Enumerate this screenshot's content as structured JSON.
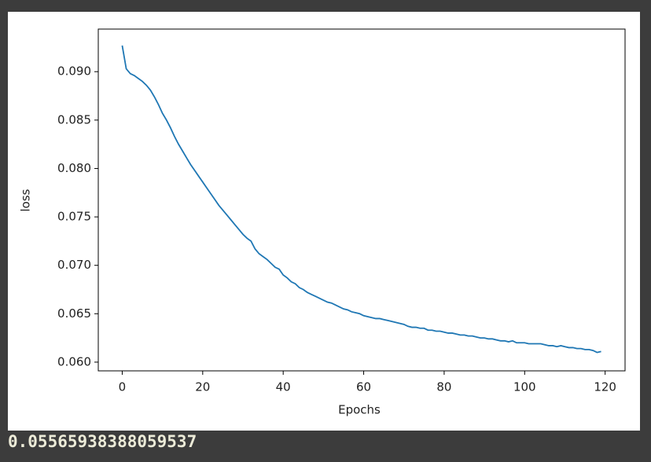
{
  "chart_data": {
    "type": "line",
    "xlabel": "Epochs",
    "ylabel": "loss",
    "color": "#1f77b4",
    "x": [
      0,
      1,
      2,
      3,
      4,
      5,
      6,
      7,
      8,
      9,
      10,
      11,
      12,
      13,
      14,
      15,
      16,
      17,
      18,
      19,
      20,
      21,
      22,
      23,
      24,
      25,
      26,
      27,
      28,
      29,
      30,
      31,
      32,
      33,
      34,
      35,
      36,
      37,
      38,
      39,
      40,
      41,
      42,
      43,
      44,
      45,
      46,
      47,
      48,
      49,
      50,
      51,
      52,
      53,
      54,
      55,
      56,
      57,
      58,
      59,
      60,
      61,
      62,
      63,
      64,
      65,
      66,
      67,
      68,
      69,
      70,
      71,
      72,
      73,
      74,
      75,
      76,
      77,
      78,
      79,
      80,
      81,
      82,
      83,
      84,
      85,
      86,
      87,
      88,
      89,
      90,
      91,
      92,
      93,
      94,
      95,
      96,
      97,
      98,
      99,
      100,
      101,
      102,
      103,
      104,
      105,
      106,
      107,
      108,
      109,
      110,
      111,
      112,
      113,
      114,
      115,
      116,
      117,
      118,
      119
    ],
    "values": [
      0.0927,
      0.0903,
      0.0898,
      0.0896,
      0.0893,
      0.089,
      0.0886,
      0.0881,
      0.0874,
      0.0866,
      0.0857,
      0.085,
      0.0842,
      0.0833,
      0.0825,
      0.0818,
      0.0811,
      0.0804,
      0.0798,
      0.0792,
      0.0786,
      0.078,
      0.0774,
      0.0768,
      0.0762,
      0.0757,
      0.0752,
      0.0747,
      0.0742,
      0.0737,
      0.0732,
      0.0728,
      0.0725,
      0.0717,
      0.0712,
      0.0709,
      0.0706,
      0.0702,
      0.0698,
      0.0696,
      0.069,
      0.0687,
      0.0683,
      0.0681,
      0.0677,
      0.0675,
      0.0672,
      0.067,
      0.0668,
      0.0666,
      0.0664,
      0.0662,
      0.0661,
      0.0659,
      0.0657,
      0.0655,
      0.0654,
      0.0652,
      0.0651,
      0.065,
      0.0648,
      0.0647,
      0.0646,
      0.0645,
      0.0645,
      0.0644,
      0.0643,
      0.0642,
      0.0641,
      0.064,
      0.0639,
      0.0637,
      0.0636,
      0.0636,
      0.0635,
      0.0635,
      0.0633,
      0.0633,
      0.0632,
      0.0632,
      0.0631,
      0.063,
      0.063,
      0.0629,
      0.0628,
      0.0628,
      0.0627,
      0.0627,
      0.0626,
      0.0625,
      0.0625,
      0.0624,
      0.0624,
      0.0623,
      0.0622,
      0.0622,
      0.0621,
      0.0622,
      0.062,
      0.062,
      0.062,
      0.0619,
      0.0619,
      0.0619,
      0.0619,
      0.0618,
      0.0617,
      0.0617,
      0.0616,
      0.0617,
      0.0616,
      0.0615,
      0.0615,
      0.0614,
      0.0614,
      0.0613,
      0.0613,
      0.0612,
      0.061,
      0.0611
    ],
    "xlim": [
      -5.95,
      124.95
    ],
    "xticks": [
      0,
      20,
      40,
      60,
      80,
      100,
      120
    ],
    "ylim": [
      0.0591,
      0.0944
    ],
    "yticks": [
      {
        "value": 0.06,
        "label": "0.060"
      },
      {
        "value": 0.065,
        "label": "0.065"
      },
      {
        "value": 0.07,
        "label": "0.070"
      },
      {
        "value": 0.075,
        "label": "0.075"
      },
      {
        "value": 0.08,
        "label": "0.080"
      },
      {
        "value": 0.085,
        "label": "0.085"
      },
      {
        "value": 0.09,
        "label": "0.090"
      }
    ]
  },
  "output": "0.05565938388059537"
}
